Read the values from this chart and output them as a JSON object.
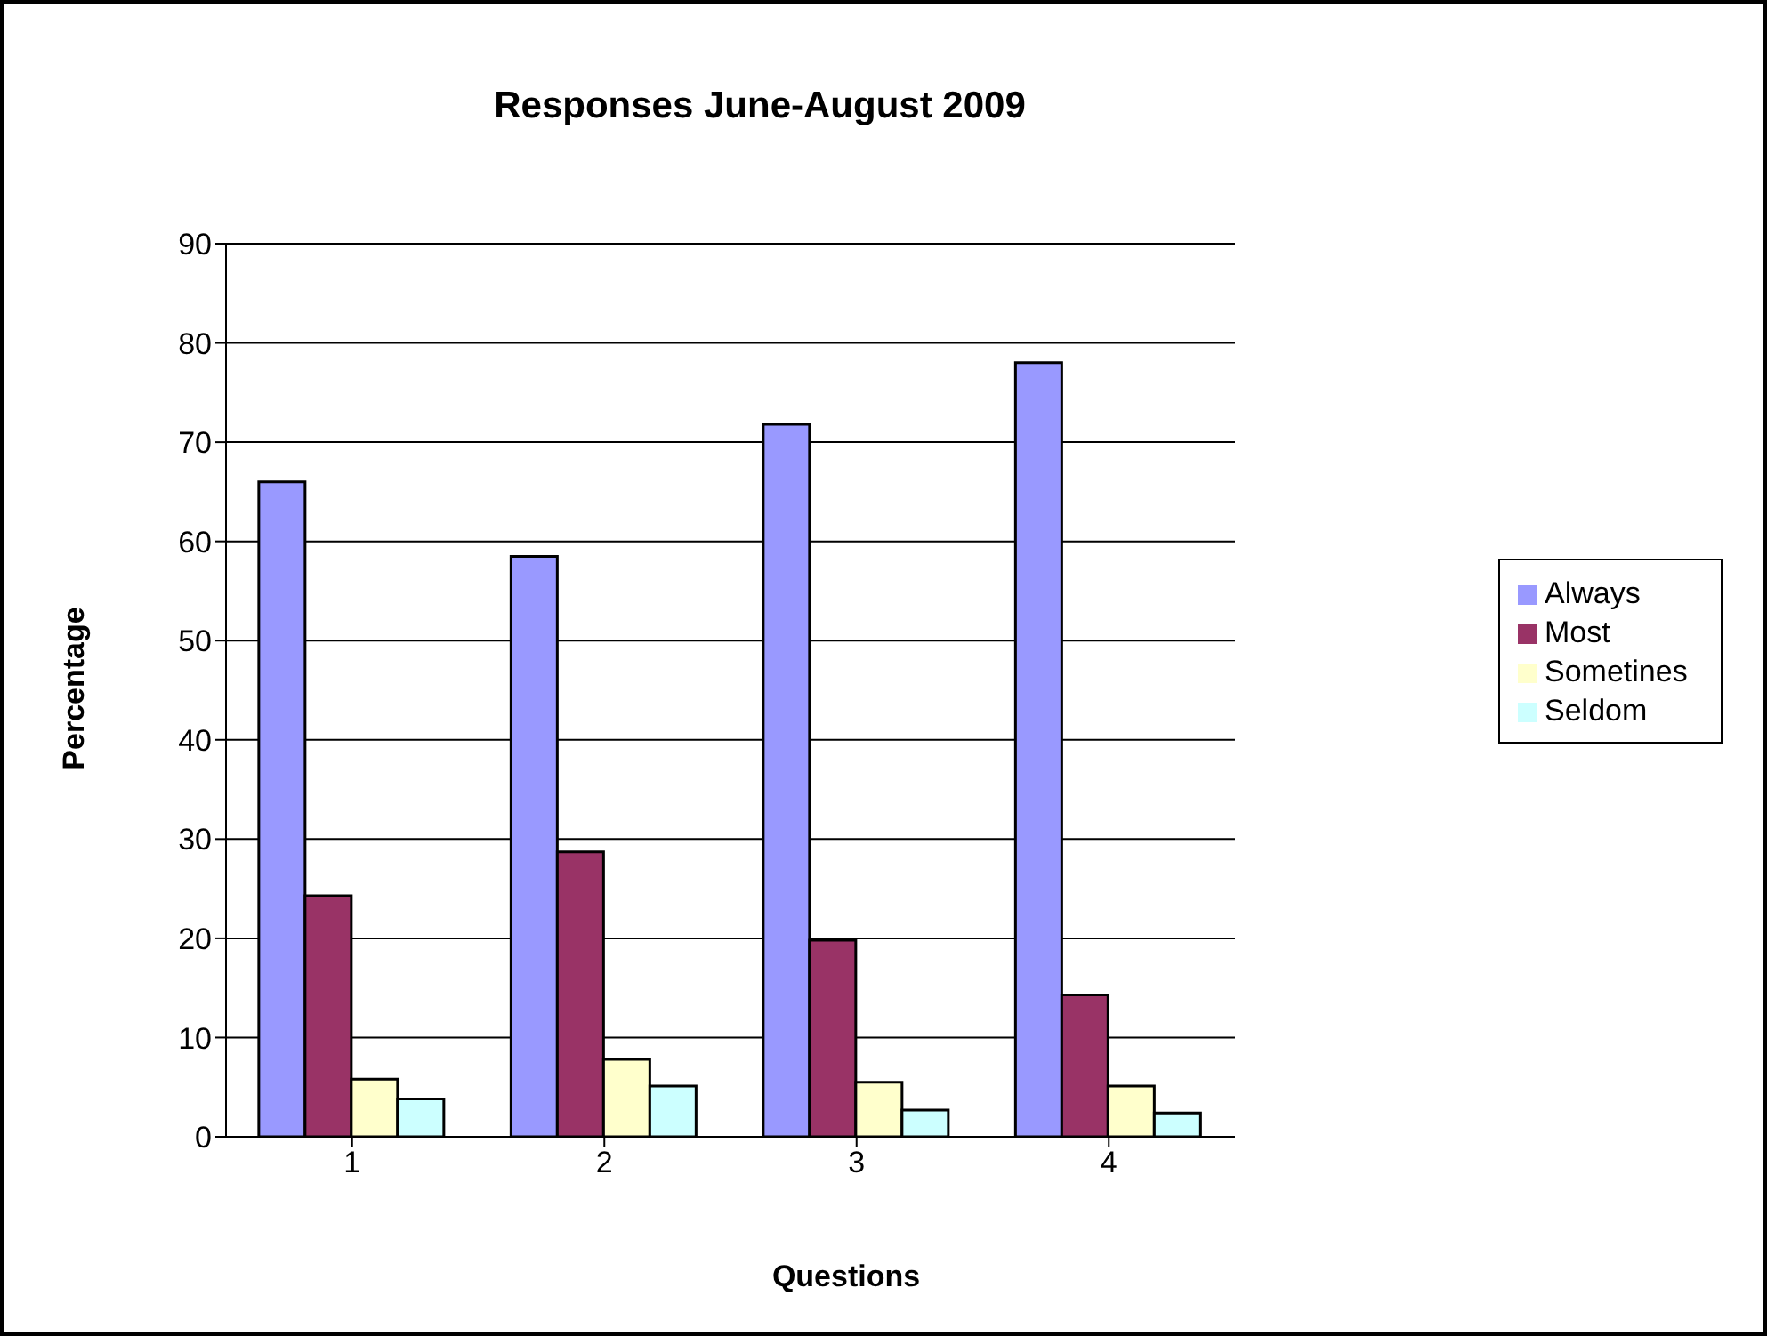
{
  "chart_data": {
    "type": "bar",
    "title": "Responses June-August 2009",
    "xlabel": "Questions",
    "ylabel": "Percentage",
    "categories": [
      "1",
      "2",
      "3",
      "4"
    ],
    "series": [
      {
        "name": "Always",
        "color": "#9999ff",
        "values": [
          66,
          58.5,
          71.8,
          78
        ]
      },
      {
        "name": "Most",
        "color": "#993366",
        "values": [
          24.3,
          28.7,
          19.8,
          14.3
        ]
      },
      {
        "name": "Sometines",
        "color": "#ffffcc",
        "values": [
          5.8,
          7.8,
          5.5,
          5.1
        ]
      },
      {
        "name": "Seldom",
        "color": "#ccffff",
        "values": [
          3.8,
          5.1,
          2.7,
          2.4
        ]
      }
    ],
    "ylim": [
      0,
      90
    ],
    "yticks": [
      0,
      10,
      20,
      30,
      40,
      50,
      60,
      70,
      80,
      90
    ],
    "grid": "y",
    "legend": "right"
  }
}
